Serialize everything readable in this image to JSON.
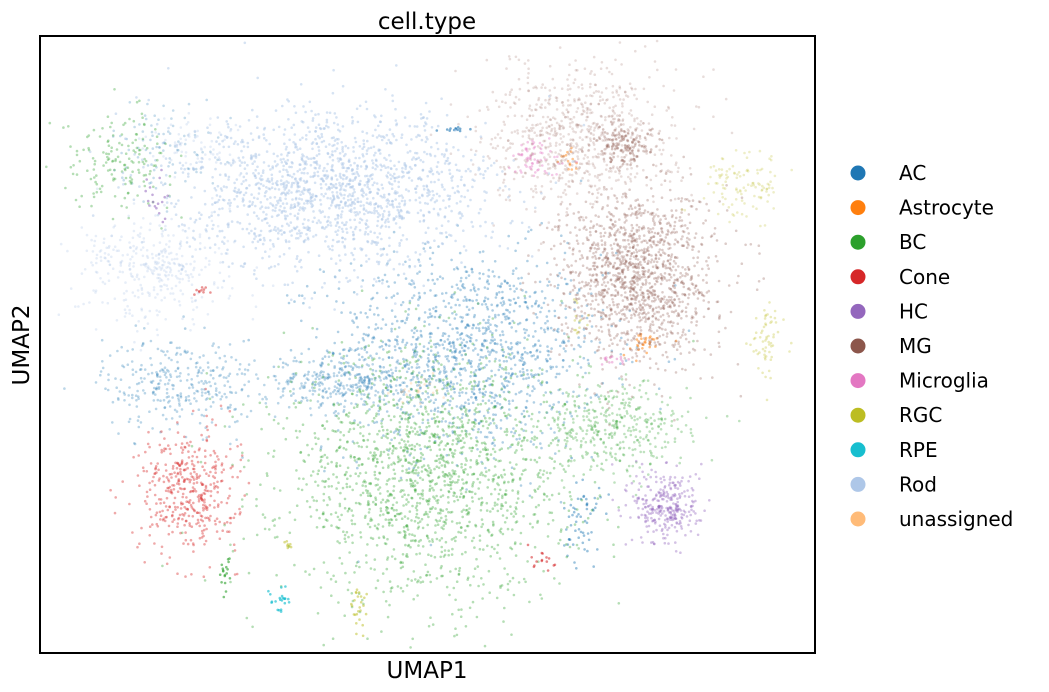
{
  "chart_data": {
    "type": "scatter",
    "title": "cell.type",
    "xlabel": "UMAP1",
    "ylabel": "UMAP2",
    "grid": false,
    "ticks": false,
    "legend_placement": "right",
    "xlim": [
      0,
      10
    ],
    "ylim": [
      0,
      8
    ],
    "series": [
      {
        "name": "AC",
        "color": "#1f77b4",
        "clusters": [
          {
            "x": 5.5,
            "y": 3.9,
            "sx": 0.9,
            "sy": 0.65,
            "n": 1300,
            "a": 0.35
          },
          {
            "x": 3.9,
            "y": 3.5,
            "sx": 0.5,
            "sy": 0.18,
            "n": 280,
            "a": 0.3
          },
          {
            "x": 1.8,
            "y": 3.5,
            "sx": 0.5,
            "sy": 0.3,
            "n": 320,
            "a": 0.3
          },
          {
            "x": 7.0,
            "y": 1.7,
            "sx": 0.12,
            "sy": 0.3,
            "n": 60,
            "a": 0.45
          },
          {
            "x": 5.4,
            "y": 6.8,
            "sx": 0.12,
            "sy": 0.02,
            "n": 12,
            "a": 0.6
          },
          {
            "x": 1.6,
            "y": 6.6,
            "sx": 0.35,
            "sy": 0.3,
            "n": 90,
            "a": 0.25
          }
        ]
      },
      {
        "name": "Astrocyte",
        "color": "#ff7f0e",
        "clusters": [
          {
            "x": 7.8,
            "y": 4.0,
            "sx": 0.15,
            "sy": 0.08,
            "n": 30,
            "a": 0.5
          },
          {
            "x": 6.8,
            "y": 6.4,
            "sx": 0.1,
            "sy": 0.1,
            "n": 15,
            "a": 0.45
          }
        ]
      },
      {
        "name": "BC",
        "color": "#2ca02c",
        "clusters": [
          {
            "x": 5.0,
            "y": 2.3,
            "sx": 0.95,
            "sy": 0.8,
            "n": 1700,
            "a": 0.35
          },
          {
            "x": 7.4,
            "y": 2.9,
            "sx": 0.5,
            "sy": 0.3,
            "n": 380,
            "a": 0.3
          },
          {
            "x": 1.0,
            "y": 6.4,
            "sx": 0.35,
            "sy": 0.3,
            "n": 160,
            "a": 0.35
          },
          {
            "x": 2.4,
            "y": 1.05,
            "sx": 0.04,
            "sy": 0.12,
            "n": 18,
            "a": 0.6
          }
        ]
      },
      {
        "name": "Cone",
        "color": "#d62728",
        "clusters": [
          {
            "x": 1.9,
            "y": 2.1,
            "sx": 0.32,
            "sy": 0.4,
            "n": 420,
            "a": 0.4
          },
          {
            "x": 6.5,
            "y": 1.15,
            "sx": 0.08,
            "sy": 0.12,
            "n": 15,
            "a": 0.55
          },
          {
            "x": 2.1,
            "y": 4.7,
            "sx": 0.05,
            "sy": 0.04,
            "n": 10,
            "a": 0.5
          }
        ]
      },
      {
        "name": "HC",
        "color": "#9467bd",
        "clusters": [
          {
            "x": 8.1,
            "y": 1.9,
            "sx": 0.22,
            "sy": 0.25,
            "n": 300,
            "a": 0.4
          },
          {
            "x": 1.5,
            "y": 5.9,
            "sx": 0.06,
            "sy": 0.18,
            "n": 18,
            "a": 0.55
          }
        ]
      },
      {
        "name": "MG",
        "color": "#8c564b",
        "clusters": [
          {
            "x": 7.7,
            "y": 4.9,
            "sx": 0.5,
            "sy": 0.55,
            "n": 1400,
            "a": 0.3
          },
          {
            "x": 7.0,
            "y": 6.7,
            "sx": 0.6,
            "sy": 0.45,
            "n": 800,
            "a": 0.2
          },
          {
            "x": 7.6,
            "y": 6.6,
            "sx": 0.2,
            "sy": 0.15,
            "n": 120,
            "a": 0.35
          }
        ]
      },
      {
        "name": "Microglia",
        "color": "#e377c2",
        "clusters": [
          {
            "x": 6.4,
            "y": 6.4,
            "sx": 0.2,
            "sy": 0.12,
            "n": 60,
            "a": 0.4
          },
          {
            "x": 7.4,
            "y": 3.8,
            "sx": 0.12,
            "sy": 0.03,
            "n": 15,
            "a": 0.45
          }
        ]
      },
      {
        "name": "RGC",
        "color": "#bcbd22",
        "clusters": [
          {
            "x": 9.1,
            "y": 6.1,
            "sx": 0.25,
            "sy": 0.22,
            "n": 110,
            "a": 0.25
          },
          {
            "x": 9.4,
            "y": 4.0,
            "sx": 0.1,
            "sy": 0.25,
            "n": 60,
            "a": 0.3
          },
          {
            "x": 4.1,
            "y": 0.5,
            "sx": 0.06,
            "sy": 0.18,
            "n": 25,
            "a": 0.5
          },
          {
            "x": 3.2,
            "y": 1.4,
            "sx": 0.04,
            "sy": 0.05,
            "n": 8,
            "a": 0.5
          },
          {
            "x": 7.0,
            "y": 4.3,
            "sx": 0.08,
            "sy": 0.15,
            "n": 14,
            "a": 0.35
          }
        ]
      },
      {
        "name": "RPE",
        "color": "#17becf",
        "clusters": [
          {
            "x": 3.1,
            "y": 0.7,
            "sx": 0.06,
            "sy": 0.08,
            "n": 22,
            "a": 0.65
          }
        ]
      },
      {
        "name": "Rod",
        "color": "#aec7e8",
        "clusters": [
          {
            "x": 3.8,
            "y": 6.0,
            "sx": 1.0,
            "sy": 0.5,
            "n": 1600,
            "a": 0.5
          },
          {
            "x": 1.5,
            "y": 5.0,
            "sx": 0.5,
            "sy": 0.35,
            "n": 360,
            "a": 0.3
          },
          {
            "x": 2.0,
            "y": 6.6,
            "sx": 0.3,
            "sy": 0.2,
            "n": 70,
            "a": 0.3
          }
        ]
      },
      {
        "name": "unassigned",
        "color": "#ffbb78",
        "clusters": [
          {
            "x": 4.9,
            "y": 3.4,
            "sx": 0.2,
            "sy": 0.1,
            "n": 20,
            "a": 0.3
          }
        ]
      }
    ]
  }
}
